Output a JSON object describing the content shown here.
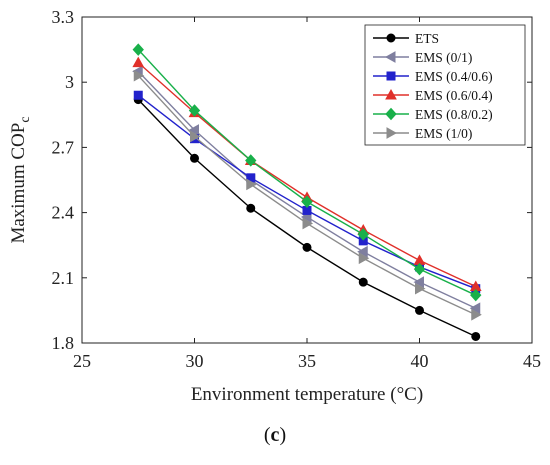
{
  "chart_data": {
    "type": "line",
    "xlabel": "Environment temperature (°C)",
    "ylabel": "Maximum COP",
    "ylabel_subscript": "c",
    "xlim": [
      25,
      45
    ],
    "ylim": [
      1.8,
      3.3
    ],
    "xticks": [
      "25",
      "30",
      "35",
      "40",
      "45"
    ],
    "yticks": [
      "1.8",
      "2.1",
      "2.4",
      "2.7",
      "3",
      "3.3"
    ],
    "x": [
      27.5,
      30,
      32.5,
      35,
      37.5,
      40,
      42.5
    ],
    "grid": false,
    "legend_position": "top-right",
    "series": [
      {
        "name": "ETS",
        "color": "#000000",
        "marker": "circle",
        "values": [
          2.92,
          2.65,
          2.42,
          2.24,
          2.08,
          1.95,
          1.83
        ]
      },
      {
        "name": "EMS (0/1)",
        "color": "#7f7f9f",
        "marker": "triangle-left",
        "values": [
          3.05,
          2.78,
          2.55,
          2.38,
          2.22,
          2.08,
          1.96
        ]
      },
      {
        "name": "EMS (0.4/0.6)",
        "color": "#2222cc",
        "marker": "square",
        "values": [
          2.94,
          2.74,
          2.56,
          2.41,
          2.27,
          2.15,
          2.05
        ]
      },
      {
        "name": "EMS (0.6/0.4)",
        "color": "#e0302a",
        "marker": "triangle-up",
        "values": [
          3.09,
          2.86,
          2.64,
          2.47,
          2.32,
          2.18,
          2.06
        ]
      },
      {
        "name": "EMS (0.8/0.2)",
        "color": "#19b04a",
        "marker": "diamond",
        "values": [
          3.15,
          2.87,
          2.64,
          2.45,
          2.3,
          2.14,
          2.02
        ]
      },
      {
        "name": "EMS (1/0)",
        "color": "#8c8c8c",
        "marker": "triangle-right",
        "values": [
          3.03,
          2.75,
          2.53,
          2.35,
          2.19,
          2.05,
          1.93
        ]
      }
    ]
  },
  "caption": {
    "open": "(",
    "label": "c",
    "close": ")"
  }
}
